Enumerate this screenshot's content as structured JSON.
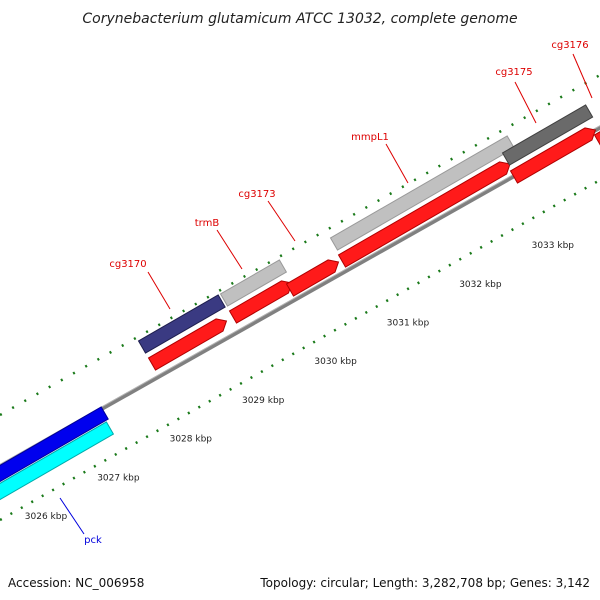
{
  "title": "Corynebacterium glutamicum ATCC 13032, complete genome",
  "accession_label": "Accession: NC_006958",
  "topology_label": "Topology: circular; Length: 3,282,708 bp; Genes: 3,142",
  "colors": {
    "backbone": "#808080",
    "forward_cds": "#ff1a1a",
    "label_red": "#dd0000",
    "label_blue": "#0000dd",
    "tick_green": "#1a7a1a"
  },
  "kbp_ticks": [
    {
      "value": 3026,
      "label": "3026 kbp"
    },
    {
      "value": 3027,
      "label": "3027 kbp"
    },
    {
      "value": 3028,
      "label": "3028 kbp"
    },
    {
      "value": 3029,
      "label": "3029 kbp"
    },
    {
      "value": 3030,
      "label": "3030 kbp"
    },
    {
      "value": 3031,
      "label": "3031 kbp"
    },
    {
      "value": 3032,
      "label": "3032 kbp"
    },
    {
      "value": 3033,
      "label": "3033 kbp"
    }
  ],
  "genes": [
    {
      "name": "pck",
      "label_color": "#0000dd"
    },
    {
      "name": "cg3170",
      "label_color": "#dd0000"
    },
    {
      "name": "trmB",
      "label_color": "#dd0000"
    },
    {
      "name": "cg3173",
      "label_color": "#dd0000"
    },
    {
      "name": "mmpL1",
      "label_color": "#dd0000"
    },
    {
      "name": "cg3175",
      "label_color": "#dd0000"
    },
    {
      "name": "cg3176",
      "label_color": "#dd0000"
    }
  ]
}
